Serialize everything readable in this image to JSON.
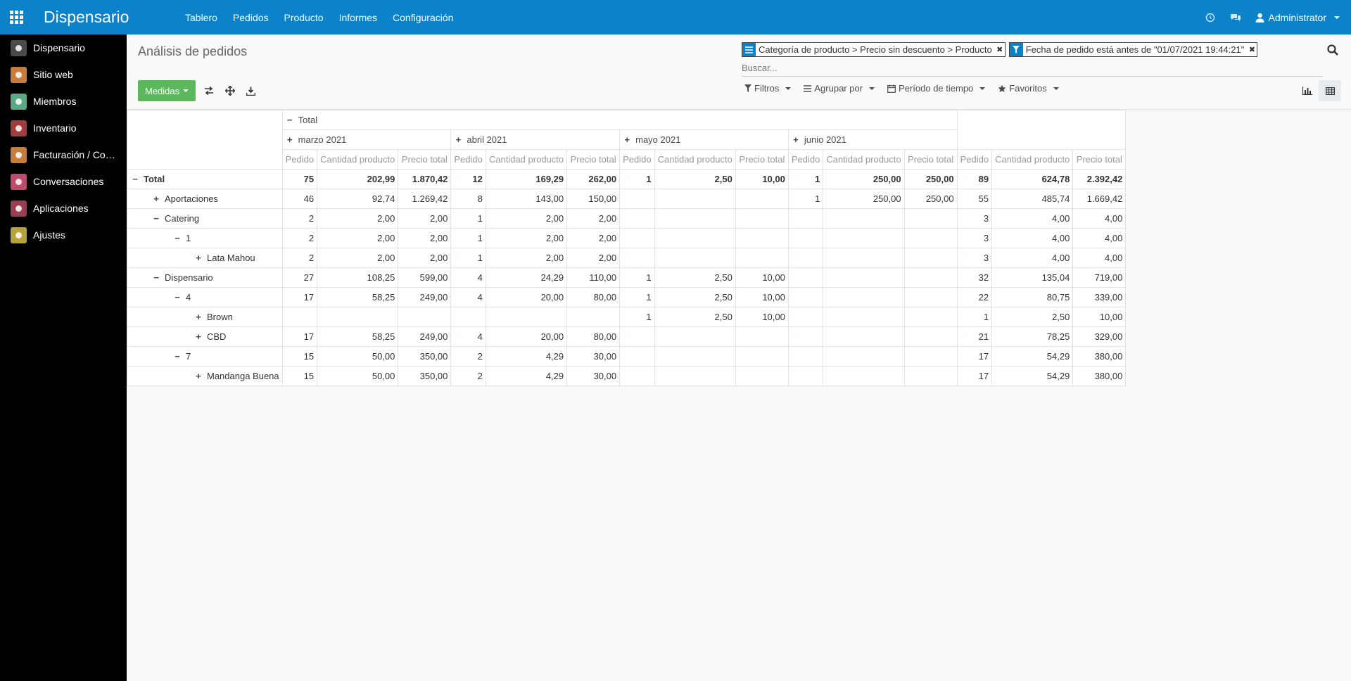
{
  "app": {
    "title": "Dispensario"
  },
  "menu": [
    "Tablero",
    "Pedidos",
    "Producto",
    "Informes",
    "Configuración"
  ],
  "user": {
    "name": "Administrator"
  },
  "sidebar": [
    {
      "label": "Dispensario",
      "icon": "dispensary-icon",
      "color": "#4a4a4a"
    },
    {
      "label": "Sitio web",
      "icon": "globe-icon",
      "color": "#c97b3a"
    },
    {
      "label": "Miembros",
      "icon": "person-icon",
      "color": "#5aa884"
    },
    {
      "label": "Inventario",
      "icon": "boxes-icon",
      "color": "#a33d3d"
    },
    {
      "label": "Facturación / Cont...",
      "icon": "invoice-icon",
      "color": "#c97b3a"
    },
    {
      "label": "Conversaciones",
      "icon": "chat-bubble-icon",
      "color": "#c14b6e"
    },
    {
      "label": "Aplicaciones",
      "icon": "cubes-icon",
      "color": "#9a3d52"
    },
    {
      "label": "Ajustes",
      "icon": "gear-icon",
      "color": "#b8a23a"
    }
  ],
  "control": {
    "breadcrumb": "Análisis de pedidos",
    "measures_label": "Medidas",
    "facets": [
      {
        "icon": "group-by-icon",
        "text": "Categoría de producto > Precio sin descuento > Producto"
      },
      {
        "icon": "filter-icon",
        "text": "Fecha de pedido está antes de \"01/07/2021 19:44:21\""
      }
    ],
    "search_placeholder": "Buscar...",
    "dropdowns": [
      {
        "label": "Filtros",
        "icon": "filter-icon"
      },
      {
        "label": "Agrupar por",
        "icon": "list-icon"
      },
      {
        "label": "Período de tiempo",
        "icon": "calendar-icon"
      },
      {
        "label": "Favoritos",
        "icon": "star-icon"
      }
    ]
  },
  "pivot": {
    "total_header": "Total",
    "months": [
      "marzo 2021",
      "abril 2021",
      "mayo 2021",
      "junio 2021"
    ],
    "measures": [
      "Pedido",
      "Cantidad producto",
      "Precio total"
    ],
    "rows": [
      {
        "label": "Total",
        "level": 0,
        "toggle": "−",
        "bold": true,
        "cells": [
          "75",
          "202,99",
          "1.870,42",
          "12",
          "169,29",
          "262,00",
          "1",
          "2,50",
          "10,00",
          "1",
          "250,00",
          "250,00",
          "89",
          "624,78",
          "2.392,42"
        ]
      },
      {
        "label": "Aportaciones",
        "level": 1,
        "toggle": "+",
        "bold": false,
        "cells": [
          "46",
          "92,74",
          "1.269,42",
          "8",
          "143,00",
          "150,00",
          "",
          "",
          "",
          "1",
          "250,00",
          "250,00",
          "55",
          "485,74",
          "1.669,42"
        ]
      },
      {
        "label": "Catering",
        "level": 1,
        "toggle": "−",
        "bold": false,
        "cells": [
          "2",
          "2,00",
          "2,00",
          "1",
          "2,00",
          "2,00",
          "",
          "",
          "",
          "",
          "",
          "",
          "3",
          "4,00",
          "4,00"
        ]
      },
      {
        "label": "1",
        "level": 2,
        "toggle": "−",
        "bold": false,
        "cells": [
          "2",
          "2,00",
          "2,00",
          "1",
          "2,00",
          "2,00",
          "",
          "",
          "",
          "",
          "",
          "",
          "3",
          "4,00",
          "4,00"
        ]
      },
      {
        "label": "Lata Mahou",
        "level": 3,
        "toggle": "+",
        "bold": false,
        "cells": [
          "2",
          "2,00",
          "2,00",
          "1",
          "2,00",
          "2,00",
          "",
          "",
          "",
          "",
          "",
          "",
          "3",
          "4,00",
          "4,00"
        ]
      },
      {
        "label": "Dispensario",
        "level": 1,
        "toggle": "−",
        "bold": false,
        "cells": [
          "27",
          "108,25",
          "599,00",
          "4",
          "24,29",
          "110,00",
          "1",
          "2,50",
          "10,00",
          "",
          "",
          "",
          "32",
          "135,04",
          "719,00"
        ]
      },
      {
        "label": "4",
        "level": 2,
        "toggle": "−",
        "bold": false,
        "cells": [
          "17",
          "58,25",
          "249,00",
          "4",
          "20,00",
          "80,00",
          "1",
          "2,50",
          "10,00",
          "",
          "",
          "",
          "22",
          "80,75",
          "339,00"
        ]
      },
      {
        "label": "Brown",
        "level": 3,
        "toggle": "+",
        "bold": false,
        "cells": [
          "",
          "",
          "",
          "",
          "",
          "",
          "1",
          "2,50",
          "10,00",
          "",
          "",
          "",
          "1",
          "2,50",
          "10,00"
        ]
      },
      {
        "label": "CBD",
        "level": 3,
        "toggle": "+",
        "bold": false,
        "cells": [
          "17",
          "58,25",
          "249,00",
          "4",
          "20,00",
          "80,00",
          "",
          "",
          "",
          "",
          "",
          "",
          "21",
          "78,25",
          "329,00"
        ]
      },
      {
        "label": "7",
        "level": 2,
        "toggle": "−",
        "bold": false,
        "cells": [
          "15",
          "50,00",
          "350,00",
          "2",
          "4,29",
          "30,00",
          "",
          "",
          "",
          "",
          "",
          "",
          "17",
          "54,29",
          "380,00"
        ]
      },
      {
        "label": "Mandanga Buena",
        "level": 3,
        "toggle": "+",
        "bold": false,
        "cells": [
          "15",
          "50,00",
          "350,00",
          "2",
          "4,29",
          "30,00",
          "",
          "",
          "",
          "",
          "",
          "",
          "17",
          "54,29",
          "380,00"
        ]
      }
    ]
  },
  "colors": {
    "navbar": "#0b82c9",
    "primary_button": "#5cb85c",
    "sidebar": "#000000"
  }
}
